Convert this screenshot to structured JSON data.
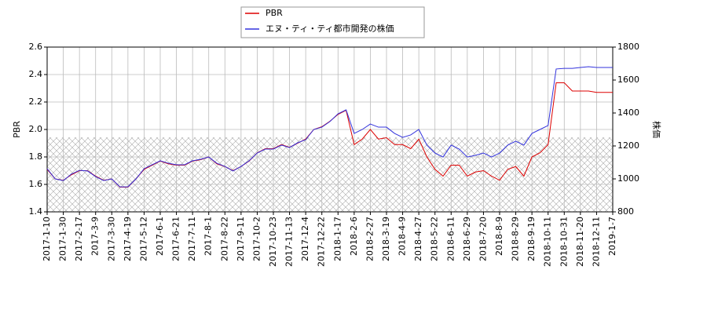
{
  "chart_data": {
    "type": "line",
    "categories": [
      "2017-1-10",
      null,
      "2017-1-30",
      null,
      "2017-2-17",
      null,
      "2017-3-9",
      null,
      "2017-3-30",
      null,
      "2017-4-19",
      null,
      "2017-5-12",
      null,
      "2017-6-1",
      null,
      "2017-6-21",
      null,
      "2017-7-11",
      null,
      "2017-8-1",
      null,
      "2017-8-22",
      null,
      "2017-9-11",
      null,
      "2017-10-2",
      null,
      "2017-10-23",
      null,
      "2017-11-13",
      null,
      "2017-12-4",
      null,
      "2017-12-22",
      null,
      "2018-1-17",
      null,
      "2018-2-6",
      null,
      "2018-2-27",
      null,
      "2018-3-19",
      null,
      "2018-4-9",
      null,
      "2018-4-27",
      null,
      "2018-5-22",
      null,
      "2018-6-11",
      null,
      "2018-6-29",
      null,
      "2018-7-20",
      null,
      "2018-8-9",
      null,
      "2018-8-29",
      null,
      "2018-9-19",
      null,
      "2018-10-11",
      null,
      "2018-10-31",
      null,
      "2018-11-20",
      null,
      "2018-12-11",
      null,
      "2019-1-7"
    ],
    "series": [
      {
        "name": "PBR",
        "color": "#dd0000",
        "axis": "y",
        "values": [
          1.71,
          1.64,
          1.63,
          1.67,
          1.7,
          1.7,
          1.66,
          1.63,
          1.64,
          1.58,
          1.58,
          1.64,
          1.71,
          1.74,
          1.77,
          1.75,
          1.74,
          1.74,
          1.77,
          1.78,
          1.8,
          1.75,
          1.73,
          1.7,
          1.73,
          1.77,
          1.83,
          1.86,
          1.86,
          1.89,
          1.87,
          1.9,
          1.93,
          2.0,
          2.02,
          2.06,
          2.11,
          2.14,
          1.89,
          1.93,
          2.0,
          1.93,
          1.94,
          1.89,
          1.89,
          1.86,
          1.93,
          1.8,
          1.71,
          1.66,
          1.74,
          1.74,
          1.66,
          1.69,
          1.7,
          1.66,
          1.63,
          1.71,
          1.73,
          1.66,
          1.8,
          1.83,
          1.89,
          2.34,
          2.34,
          2.28,
          2.28,
          2.28,
          2.27,
          2.27,
          2.27
        ]
      },
      {
        "name": "エヌ・ティ・ティ都市開発の株価",
        "color": "#3333dd",
        "axis": "y2",
        "values": [
          1062,
          1000,
          990,
          1029,
          1052,
          1048,
          1014,
          990,
          1000,
          952,
          952,
          1000,
          1062,
          1086,
          1110,
          1095,
          1086,
          1086,
          1110,
          1119,
          1133,
          1095,
          1076,
          1048,
          1076,
          1110,
          1157,
          1181,
          1181,
          1205,
          1190,
          1219,
          1238,
          1300,
          1314,
          1348,
          1395,
          1419,
          1276,
          1300,
          1333,
          1314,
          1314,
          1276,
          1252,
          1267,
          1300,
          1205,
          1157,
          1133,
          1205,
          1181,
          1133,
          1143,
          1157,
          1133,
          1157,
          1205,
          1229,
          1205,
          1276,
          1300,
          1324,
          1667,
          1671,
          1671,
          1676,
          1681,
          1676,
          1676,
          1676
        ]
      }
    ],
    "ylabel": "PBR",
    "y2label": "株価",
    "ylim": [
      1.4,
      2.6
    ],
    "yticks": [
      1.4,
      1.6,
      1.8,
      {
        "value": 2,
        "label": "2.0"
      },
      2.2,
      2.4,
      2.6
    ],
    "y2lim": [
      800,
      1800
    ],
    "y2ticks": [
      800,
      1000,
      1200,
      1400,
      1600,
      1800
    ],
    "grid": true,
    "legend": "top"
  }
}
